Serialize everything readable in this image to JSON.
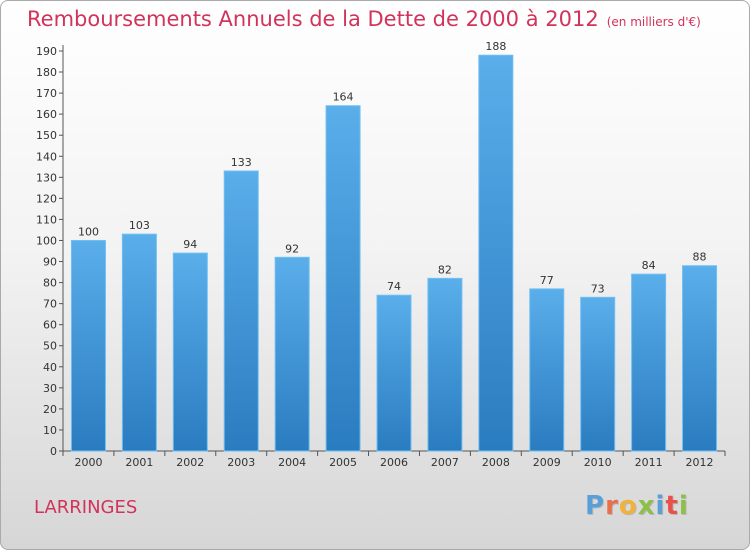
{
  "header": {
    "title": "Remboursements Annuels de la Dette de 2000 à 2012",
    "subtitle": "(en milliers d'€)"
  },
  "footer": {
    "town": "LARRINGES",
    "logo_text": "Proxiti"
  },
  "colors": {
    "title": "#d2335a",
    "bar_top": "#5aaeea",
    "bar_bottom": "#2a7cc0",
    "logo": [
      "#5aa0d8",
      "#e8704a",
      "#f0b23a",
      "#8cc04a",
      "#5aa0d8",
      "#e8504a",
      "#8cc04a"
    ]
  },
  "chart_data": {
    "type": "bar",
    "title": "Remboursements Annuels de la Dette de 2000 à 2012",
    "subtitle": "(en milliers d'€)",
    "xlabel": "",
    "ylabel": "",
    "categories": [
      "2000",
      "2001",
      "2002",
      "2003",
      "2004",
      "2005",
      "2006",
      "2007",
      "2008",
      "2009",
      "2010",
      "2011",
      "2012"
    ],
    "values": [
      100,
      103,
      94,
      133,
      92,
      164,
      74,
      82,
      188,
      77,
      73,
      84,
      88
    ],
    "ylim": [
      0,
      190
    ],
    "yticks": [
      0,
      10,
      20,
      30,
      40,
      50,
      60,
      70,
      80,
      90,
      100,
      110,
      120,
      130,
      140,
      150,
      160,
      170,
      180,
      190
    ],
    "grid": false,
    "legend": "none"
  }
}
